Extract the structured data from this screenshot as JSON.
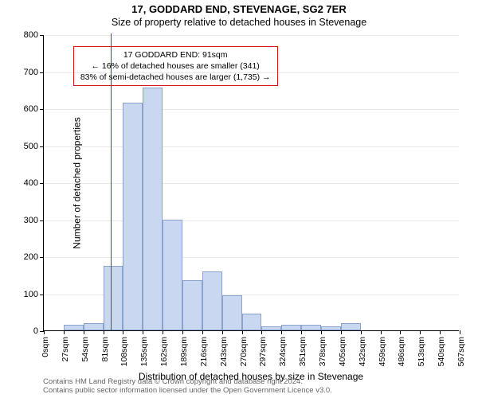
{
  "title": {
    "line1": "17, GODDARD END, STEVENAGE, SG2 7ER",
    "line2": "Size of property relative to detached houses in Stevenage"
  },
  "chart": {
    "type": "histogram",
    "x_unit": "sqm",
    "x_start": 0,
    "x_step": 27,
    "x_bins": 21,
    "x_tick_every": 1,
    "ylim": [
      0,
      800
    ],
    "ytick_step": 100,
    "values": [
      0,
      15,
      20,
      175,
      615,
      655,
      300,
      135,
      160,
      95,
      45,
      10,
      15,
      15,
      10,
      20,
      0,
      0,
      0,
      0,
      0
    ],
    "bar_fill": "#c9d8f0",
    "bar_stroke": "#8aa3cc",
    "background_color": "#ffffff",
    "grid_color": "#666666",
    "axis_color": "#000000",
    "marker_value_x": 91,
    "marker_color": "#d11919",
    "y_axis_label": "Number of detached properties",
    "x_axis_label": "Distribution of detached houses by size in Stevenage"
  },
  "annotation": {
    "line1": "17 GODDARD END: 91sqm",
    "line2": "← 16% of detached houses are smaller (341)",
    "line3": "83% of semi-detached houses are larger (1,735) →",
    "border_color": "#d11919"
  },
  "attribution": {
    "line1": "Contains HM Land Registry data © Crown copyright and database right 2024.",
    "line2": "Contains public sector information licensed under the Open Government Licence v3.0."
  }
}
